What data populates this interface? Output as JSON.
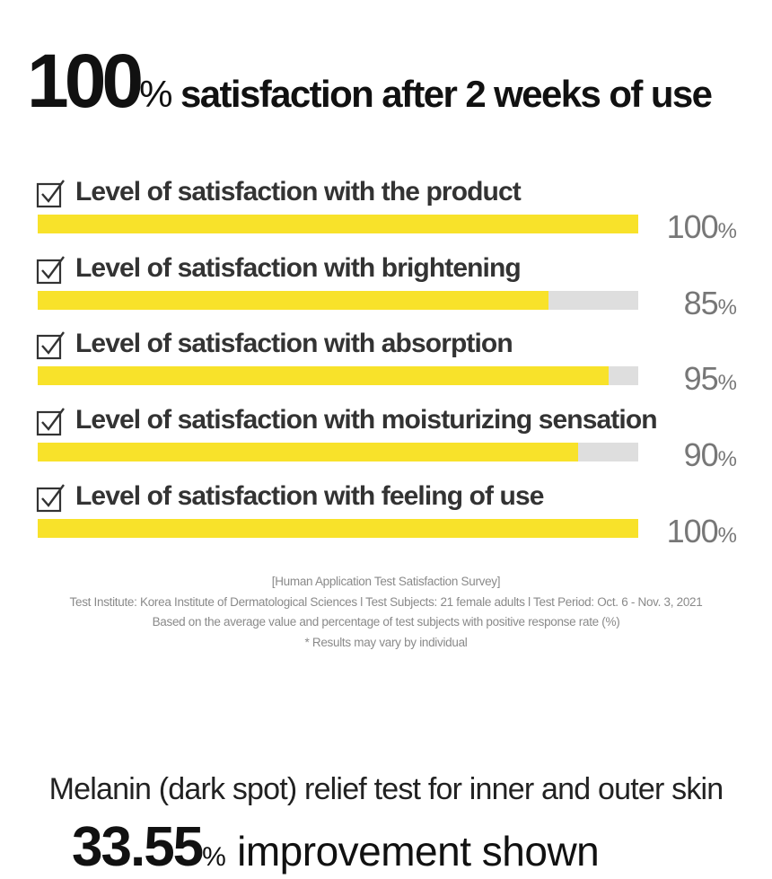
{
  "headline": {
    "big_number": "100",
    "percent_sign": "%",
    "rest": " satisfaction after 2 weeks of use"
  },
  "chart_data": {
    "type": "bar",
    "orientation": "horizontal",
    "categories": [
      "Level of satisfaction with the product",
      "Level of satisfaction with brightening",
      "Level of satisfaction with absorption",
      "Level of satisfaction with moisturizing sensation",
      "Level of satisfaction with feeling of use"
    ],
    "values": [
      100,
      85,
      95,
      90,
      100
    ],
    "value_labels": [
      "100",
      "85",
      "95",
      "90",
      "100"
    ],
    "unit": "%",
    "xlim": [
      0,
      100
    ],
    "bar_color": "#f8e22a",
    "track_color": "#dedede",
    "grid": false
  },
  "notes": [
    "[Human Application Test Satisfaction Survey]",
    "Test Institute: Korea Institute of Dermatological Sciences  l  Test Subjects: 21 female adults  l  Test Period: Oct. 6 - Nov. 3, 2021",
    "Based on the average value and percentage of test subjects with positive response rate (%)",
    "* Results may vary by individual"
  ],
  "second_section": {
    "title": "Melanin (dark spot) relief test for inner and outer skin",
    "big_number": "33.55",
    "percent_sign": "%",
    "rest": " improvement shown"
  }
}
